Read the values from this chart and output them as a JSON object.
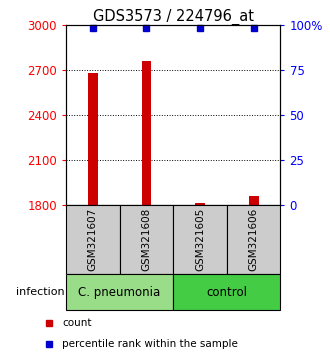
{
  "title": "GDS3573 / 224796_at",
  "samples": [
    "GSM321607",
    "GSM321608",
    "GSM321605",
    "GSM321606"
  ],
  "counts": [
    2680,
    2760,
    1815,
    1860
  ],
  "percentile_ranks": [
    98,
    98,
    98,
    98
  ],
  "ylim_left": [
    1800,
    3000
  ],
  "yticks_left": [
    1800,
    2100,
    2400,
    2700,
    3000
  ],
  "ylim_right": [
    0,
    100
  ],
  "yticks_right": [
    0,
    25,
    50,
    75,
    100
  ],
  "bar_color": "#cc0000",
  "percentile_color": "#0000cc",
  "groups": [
    {
      "label": "C. pneumonia",
      "samples": [
        0,
        1
      ],
      "color": "#99dd88"
    },
    {
      "label": "control",
      "samples": [
        2,
        3
      ],
      "color": "#44cc44"
    }
  ],
  "group_label": "infection",
  "legend_items": [
    {
      "color": "#cc0000",
      "label": "count"
    },
    {
      "color": "#0000cc",
      "label": "percentile rank within the sample"
    }
  ],
  "sample_box_color": "#cccccc",
  "title_fontsize": 10.5,
  "tick_fontsize": 8.5,
  "sample_fontsize": 7.5,
  "group_fontsize": 8.5,
  "legend_fontsize": 7.5,
  "bar_width": 0.18,
  "grid_dotted_ticks": [
    2100,
    2400,
    2700
  ]
}
